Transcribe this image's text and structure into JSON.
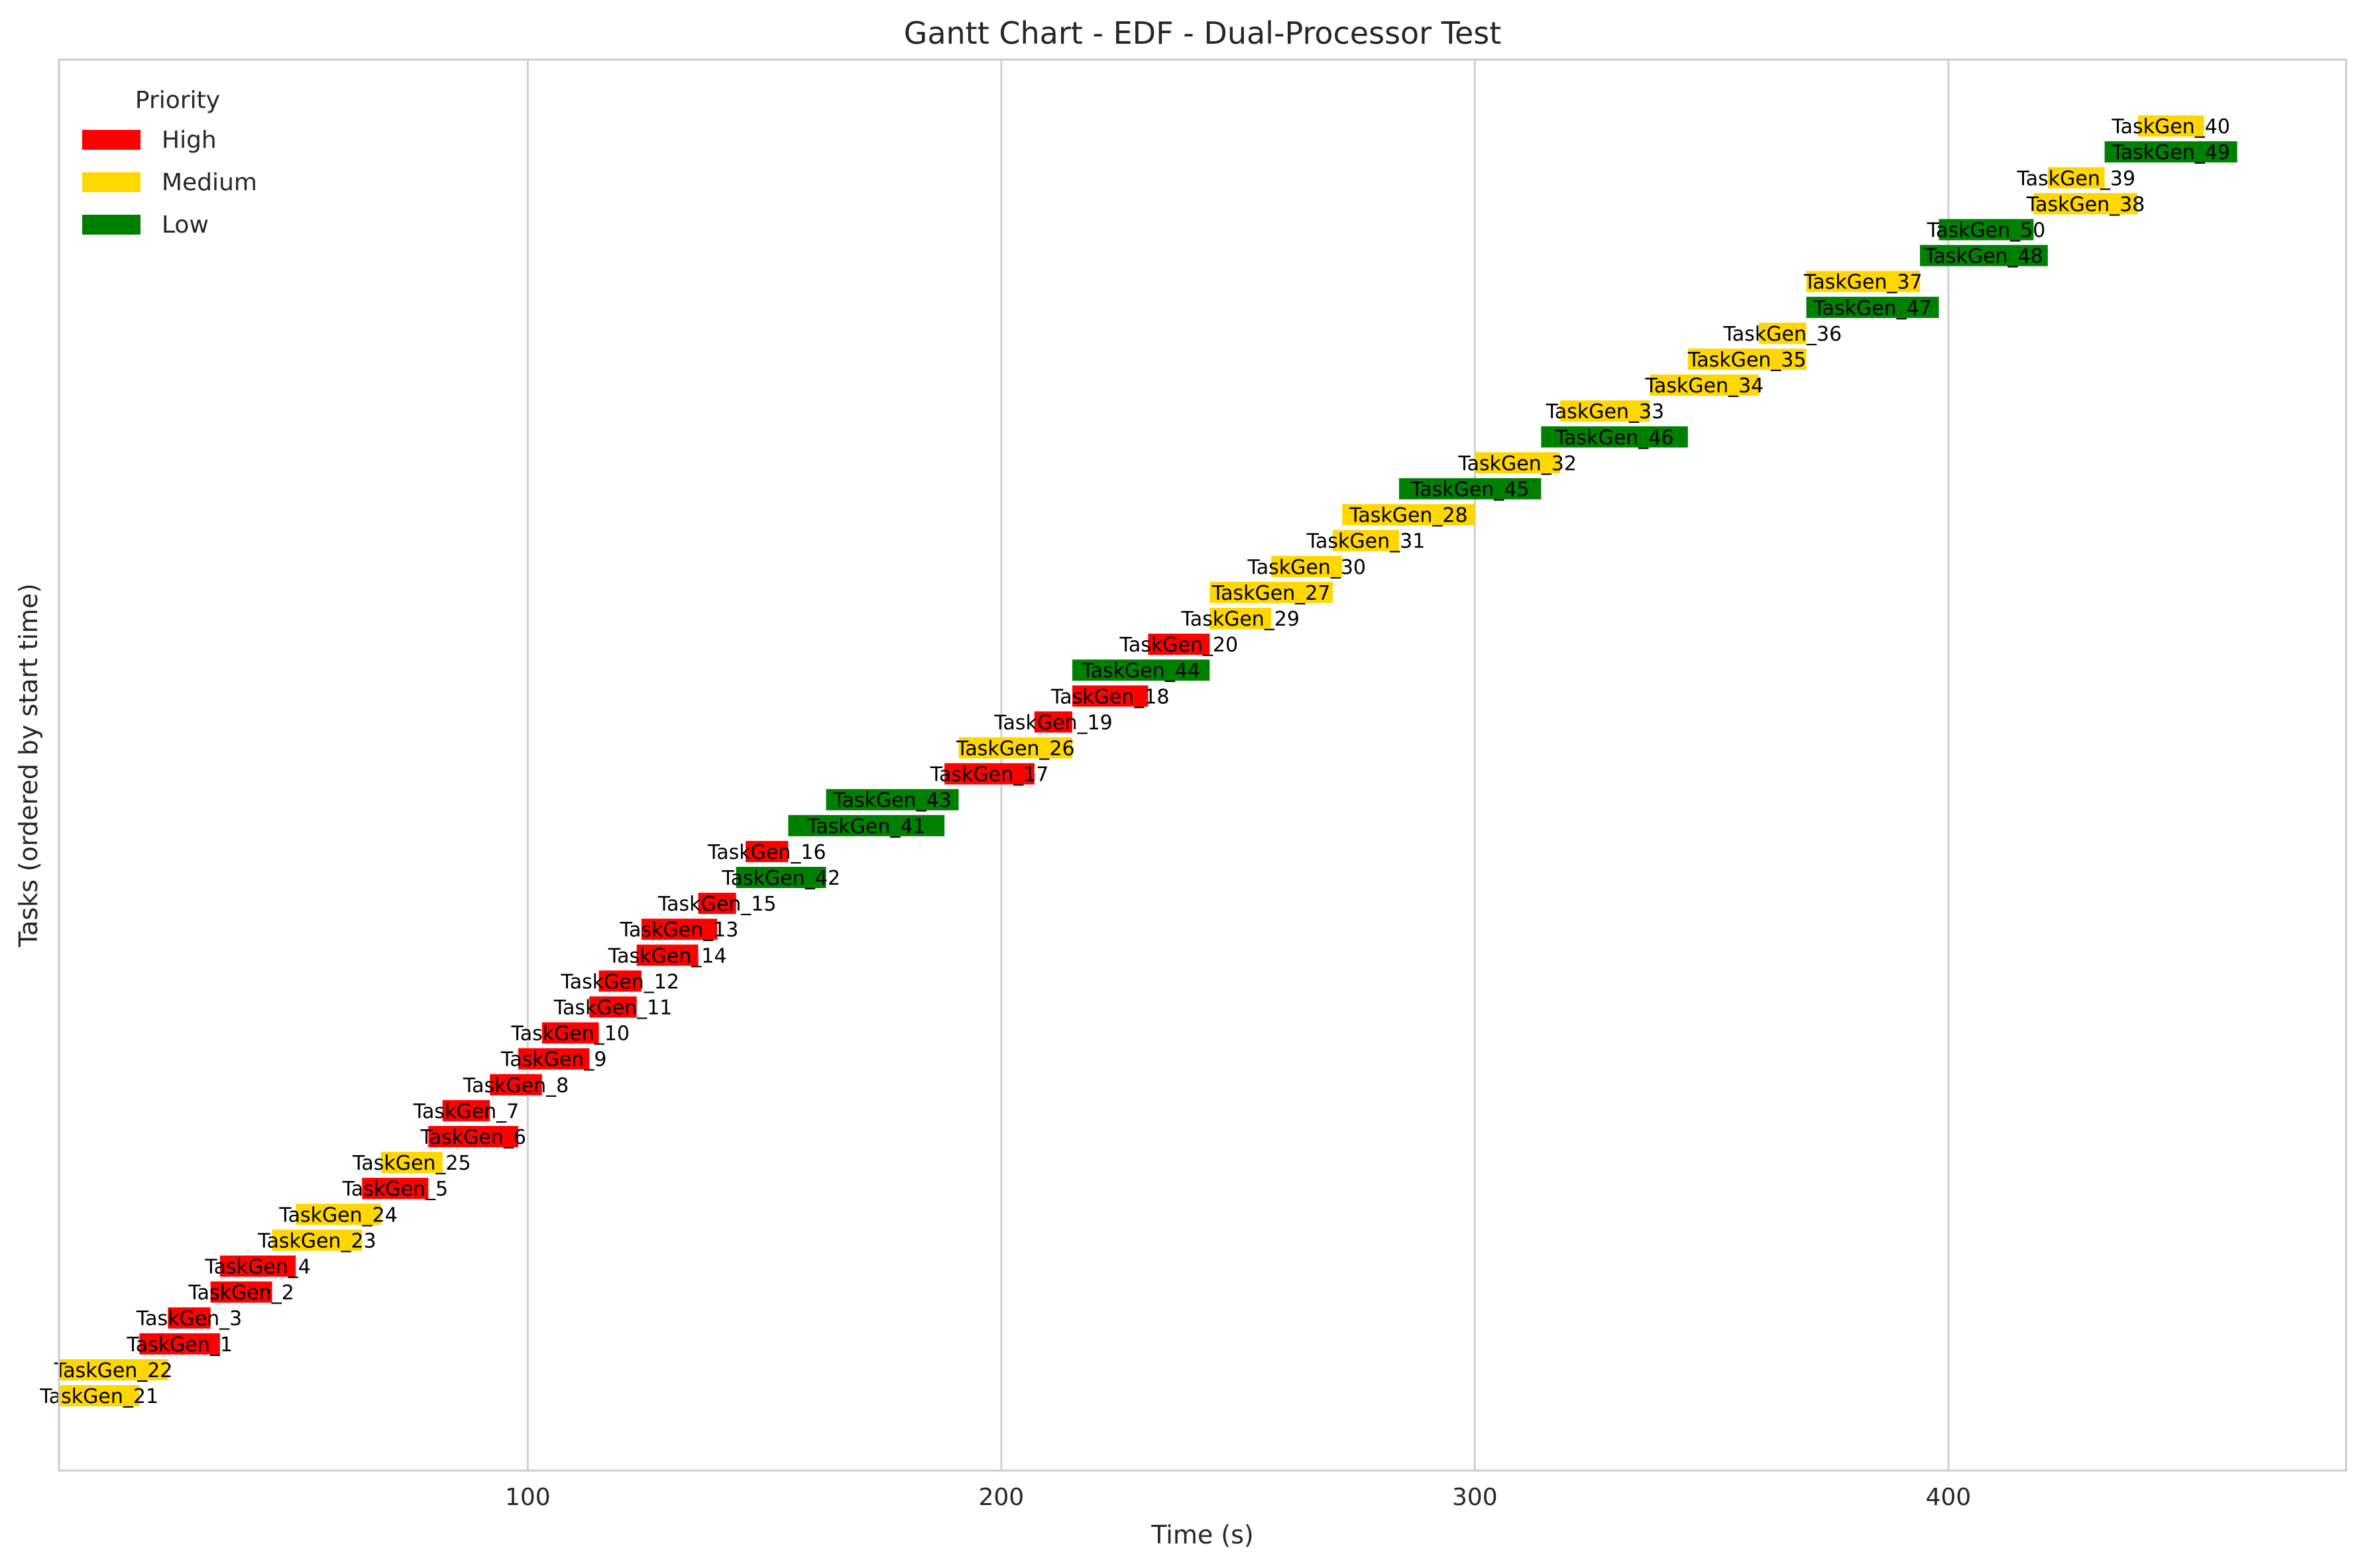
{
  "chart_data": {
    "type": "gantt",
    "title": "Gantt Chart - EDF - Dual-Processor Test",
    "xlabel": "Time (s)",
    "ylabel": "Tasks (ordered by start time)",
    "xlim": [
      1,
      484
    ],
    "xticks": [
      100,
      200,
      300,
      400
    ],
    "grid": "vertical",
    "legend": {
      "title": "Priority",
      "placement": "top-left",
      "entries": [
        {
          "label": "High",
          "color": "#ff0000"
        },
        {
          "label": "Medium",
          "color": "#ffd700"
        },
        {
          "label": "Low",
          "color": "#008000"
        }
      ]
    },
    "tasks": [
      {
        "name": "TaskGen_21",
        "start": 1,
        "end": 18,
        "priority": "Medium"
      },
      {
        "name": "TaskGen_22",
        "start": 1,
        "end": 24,
        "priority": "Medium"
      },
      {
        "name": "TaskGen_1",
        "start": 18,
        "end": 35,
        "priority": "High"
      },
      {
        "name": "TaskGen_3",
        "start": 24,
        "end": 33,
        "priority": "High"
      },
      {
        "name": "TaskGen_2",
        "start": 33,
        "end": 46,
        "priority": "High"
      },
      {
        "name": "TaskGen_4",
        "start": 35,
        "end": 51,
        "priority": "High"
      },
      {
        "name": "TaskGen_23",
        "start": 46,
        "end": 65,
        "priority": "Medium"
      },
      {
        "name": "TaskGen_24",
        "start": 51,
        "end": 69,
        "priority": "Medium"
      },
      {
        "name": "TaskGen_5",
        "start": 65,
        "end": 79,
        "priority": "High"
      },
      {
        "name": "TaskGen_25",
        "start": 69,
        "end": 82,
        "priority": "Medium"
      },
      {
        "name": "TaskGen_6",
        "start": 79,
        "end": 98,
        "priority": "High"
      },
      {
        "name": "TaskGen_7",
        "start": 82,
        "end": 92,
        "priority": "High"
      },
      {
        "name": "TaskGen_8",
        "start": 92,
        "end": 103,
        "priority": "High"
      },
      {
        "name": "TaskGen_9",
        "start": 98,
        "end": 113,
        "priority": "High"
      },
      {
        "name": "TaskGen_10",
        "start": 103,
        "end": 115,
        "priority": "High"
      },
      {
        "name": "TaskGen_11",
        "start": 113,
        "end": 123,
        "priority": "High"
      },
      {
        "name": "TaskGen_12",
        "start": 115,
        "end": 124,
        "priority": "High"
      },
      {
        "name": "TaskGen_14",
        "start": 123,
        "end": 136,
        "priority": "High"
      },
      {
        "name": "TaskGen_13",
        "start": 124,
        "end": 140,
        "priority": "High"
      },
      {
        "name": "TaskGen_15",
        "start": 136,
        "end": 144,
        "priority": "High"
      },
      {
        "name": "TaskGen_42",
        "start": 144,
        "end": 163,
        "priority": "Low"
      },
      {
        "name": "TaskGen_16",
        "start": 146,
        "end": 155,
        "priority": "High"
      },
      {
        "name": "TaskGen_41",
        "start": 155,
        "end": 188,
        "priority": "Low"
      },
      {
        "name": "TaskGen_43",
        "start": 163,
        "end": 191,
        "priority": "Low"
      },
      {
        "name": "TaskGen_17",
        "start": 188,
        "end": 207,
        "priority": "High"
      },
      {
        "name": "TaskGen_26",
        "start": 191,
        "end": 215,
        "priority": "Medium"
      },
      {
        "name": "TaskGen_19",
        "start": 207,
        "end": 215,
        "priority": "High"
      },
      {
        "name": "TaskGen_18",
        "start": 215,
        "end": 231,
        "priority": "High"
      },
      {
        "name": "TaskGen_44",
        "start": 215,
        "end": 244,
        "priority": "Low"
      },
      {
        "name": "TaskGen_20",
        "start": 231,
        "end": 244,
        "priority": "High"
      },
      {
        "name": "TaskGen_29",
        "start": 244,
        "end": 257,
        "priority": "Medium"
      },
      {
        "name": "TaskGen_27",
        "start": 244,
        "end": 270,
        "priority": "Medium"
      },
      {
        "name": "TaskGen_30",
        "start": 257,
        "end": 272,
        "priority": "Medium"
      },
      {
        "name": "TaskGen_31",
        "start": 270,
        "end": 284,
        "priority": "Medium"
      },
      {
        "name": "TaskGen_28",
        "start": 272,
        "end": 300,
        "priority": "Medium"
      },
      {
        "name": "TaskGen_45",
        "start": 284,
        "end": 314,
        "priority": "Low"
      },
      {
        "name": "TaskGen_32",
        "start": 300,
        "end": 318,
        "priority": "Medium"
      },
      {
        "name": "TaskGen_46",
        "start": 314,
        "end": 345,
        "priority": "Low"
      },
      {
        "name": "TaskGen_33",
        "start": 318,
        "end": 337,
        "priority": "Medium"
      },
      {
        "name": "TaskGen_34",
        "start": 337,
        "end": 360,
        "priority": "Medium"
      },
      {
        "name": "TaskGen_35",
        "start": 345,
        "end": 370,
        "priority": "Medium"
      },
      {
        "name": "TaskGen_36",
        "start": 360,
        "end": 370,
        "priority": "Medium"
      },
      {
        "name": "TaskGen_47",
        "start": 370,
        "end": 398,
        "priority": "Low"
      },
      {
        "name": "TaskGen_37",
        "start": 370,
        "end": 394,
        "priority": "Medium"
      },
      {
        "name": "TaskGen_48",
        "start": 394,
        "end": 421,
        "priority": "Low"
      },
      {
        "name": "TaskGen_50",
        "start": 398,
        "end": 418,
        "priority": "Low"
      },
      {
        "name": "TaskGen_38",
        "start": 418,
        "end": 440,
        "priority": "Medium"
      },
      {
        "name": "TaskGen_39",
        "start": 421,
        "end": 433,
        "priority": "Medium"
      },
      {
        "name": "TaskGen_49",
        "start": 433,
        "end": 461,
        "priority": "Low"
      },
      {
        "name": "TaskGen_40",
        "start": 440,
        "end": 454,
        "priority": "Medium"
      }
    ]
  }
}
